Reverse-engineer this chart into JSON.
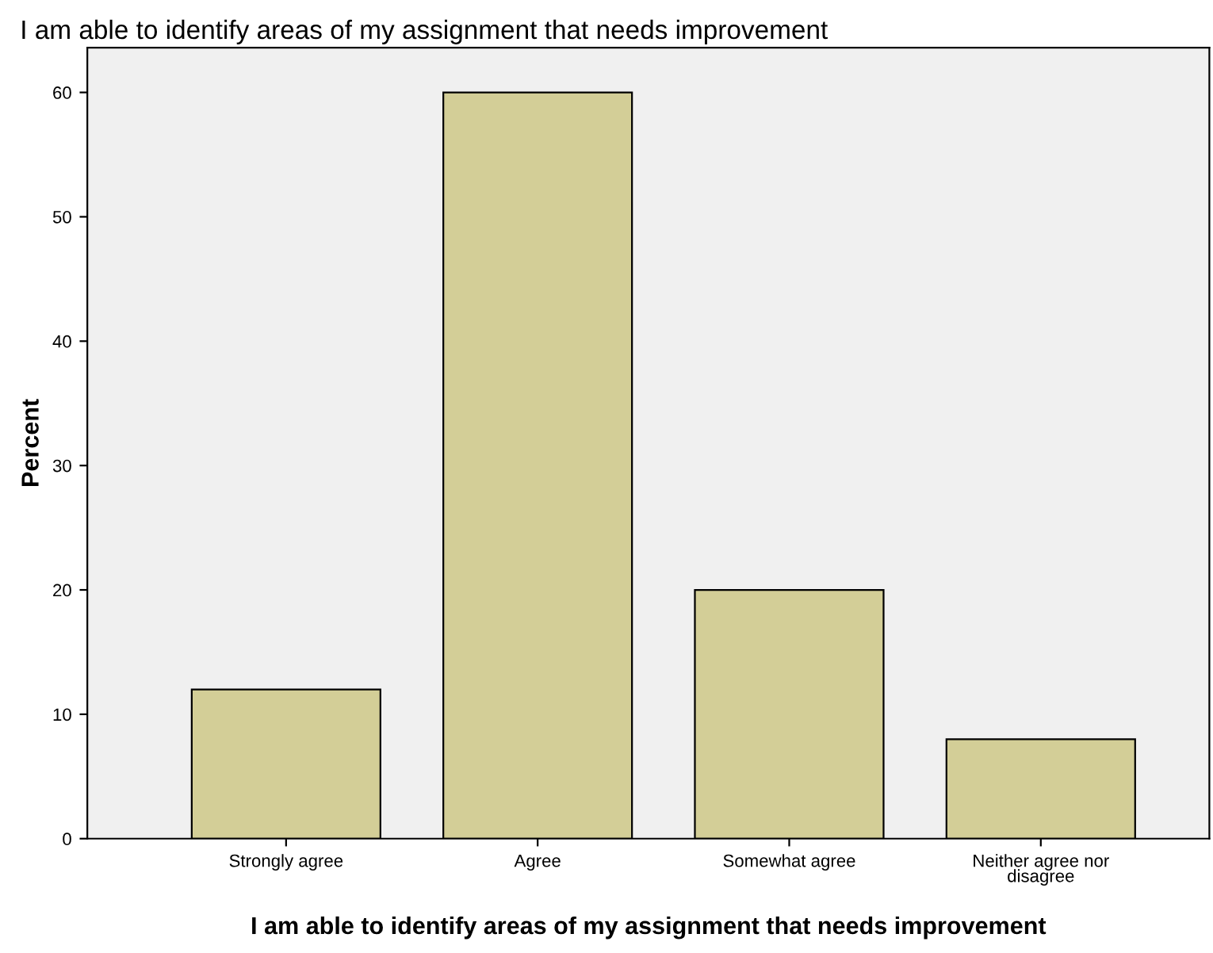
{
  "chart_data": {
    "type": "bar",
    "title": "I am able to identify areas of my assignment that needs improvement",
    "xlabel": "I am able to identify areas of my assignment that needs improvement",
    "ylabel": "Percent",
    "categories": [
      "Strongly agree",
      "Agree",
      "Somewhat agree",
      "Neither agree nor\ndisagree"
    ],
    "values": [
      12,
      60,
      20,
      8
    ],
    "color": "#d3ce97",
    "ylim": [
      0,
      63.6
    ],
    "yticks": [
      0,
      10,
      20,
      30,
      40,
      50,
      60
    ],
    "grid": false,
    "legend": false
  }
}
